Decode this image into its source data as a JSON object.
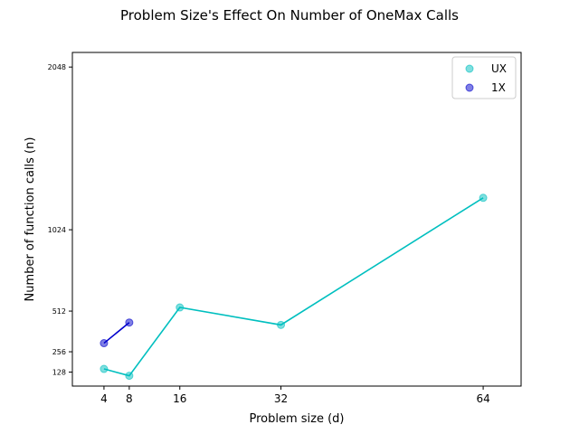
{
  "chart_data": {
    "type": "line",
    "title": "Problem Size's Effect On Number of OneMax Calls",
    "xlabel": "Problem size (d)",
    "ylabel": "Number of function calls (n)",
    "xlim": [
      -1,
      70
    ],
    "ylim": [
      40,
      2140
    ],
    "xticks": [
      4,
      8,
      16,
      32,
      64
    ],
    "yticks": [
      128,
      256,
      512,
      1024,
      2048
    ],
    "grid": false,
    "legend_position": "top-right",
    "series": [
      {
        "name": "UX",
        "color": "#00bfbf",
        "x": [
          4,
          8,
          16,
          32,
          64
        ],
        "y": [
          148,
          105,
          535,
          425,
          1225
        ]
      },
      {
        "name": "1X",
        "color": "#0000cc",
        "x": [
          4,
          8
        ],
        "y": [
          310,
          440
        ]
      }
    ]
  }
}
